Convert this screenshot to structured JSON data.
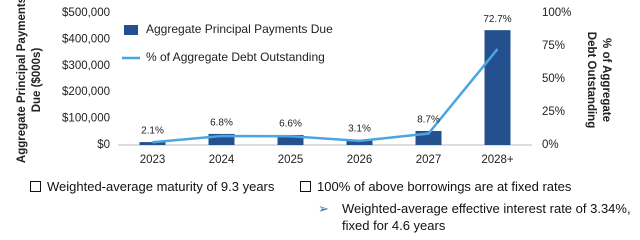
{
  "chart_data": {
    "type": "bar_line",
    "categories": [
      "2023",
      "2024",
      "2025",
      "2026",
      "2027",
      "2028+"
    ],
    "series": [
      {
        "name": "Aggregate Principal Payments Due",
        "type": "bar",
        "color": "#24508f",
        "values": [
          11000,
          42000,
          38000,
          19000,
          53000,
          435000
        ]
      },
      {
        "name": "% of Aggregate Debt Outstanding",
        "type": "line",
        "axis": "y2",
        "color": "#4aa6e0",
        "values": [
          2.1,
          6.8,
          6.6,
          3.1,
          8.7,
          72.7
        ],
        "value_labels": [
          "2.1%",
          "6.8%",
          "6.6%",
          "3.1%",
          "8.7%",
          "72.7%"
        ]
      }
    ],
    "ylabel": "Aggregate Principal Payments Due ($000s)",
    "y2label": "% of Aggregate Debt Outstanding",
    "ylim": [
      0,
      500000
    ],
    "yticks": [
      {
        "value": 0,
        "label": "$0"
      },
      {
        "value": 100000,
        "label": "$100,000"
      },
      {
        "value": 200000,
        "label": "$200,000"
      },
      {
        "value": 300000,
        "label": "$300,000"
      },
      {
        "value": 400000,
        "label": "$400,000"
      },
      {
        "value": 500000,
        "label": "$500,000"
      }
    ],
    "y2lim": [
      0,
      100
    ],
    "y2ticks": [
      {
        "value": 0,
        "label": "0%"
      },
      {
        "value": 25,
        "label": "25%"
      },
      {
        "value": 50,
        "label": "50%"
      },
      {
        "value": 75,
        "label": "75%"
      },
      {
        "value": 100,
        "label": "100%"
      }
    ],
    "legend": "upper left",
    "grid": false
  },
  "notes": [
    "Weighted-average maturity of 9.3 years",
    "100% of above borrowings are at fixed rates",
    "Weighted-average effective interest rate of 3.34%, fixed for 4.6 years"
  ]
}
